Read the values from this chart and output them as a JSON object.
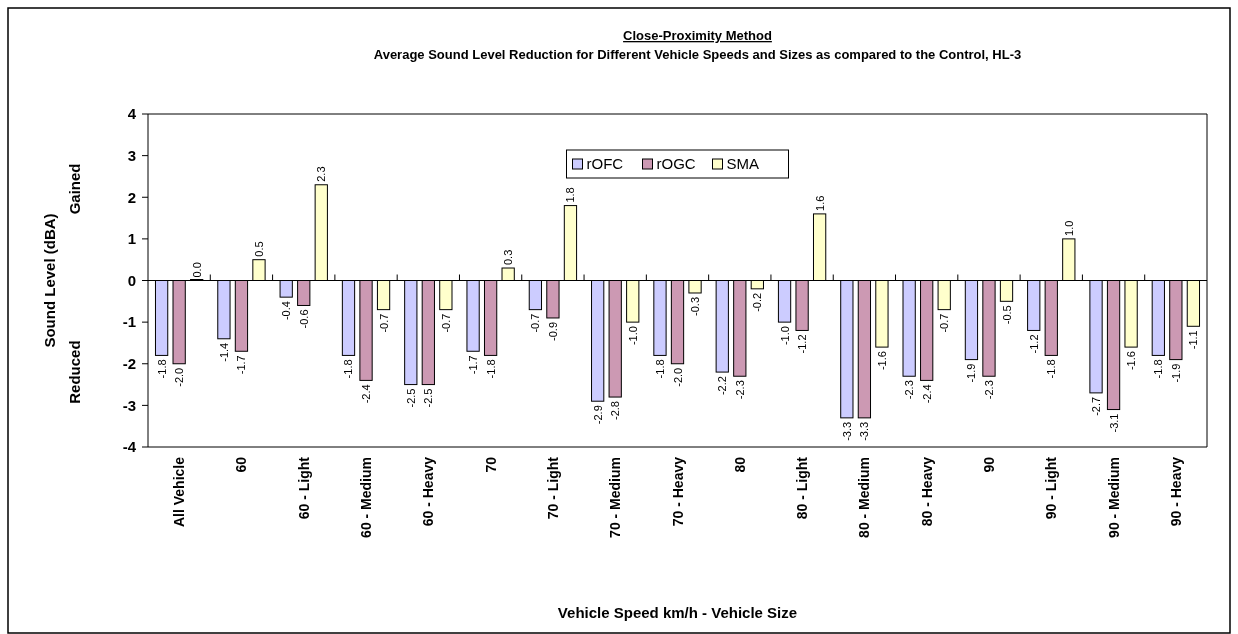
{
  "chart_data": {
    "type": "bar",
    "title": "Close-Proximity Method",
    "subtitle": "Average Sound Level Reduction for Different Vehicle Speeds and Sizes as compared to the Control, HL-3",
    "xlabel": "Vehicle Speed km/h - Vehicle Size",
    "ylabel": "Sound Level (dBA)",
    "annotations": [
      "Gained",
      "Reduced"
    ],
    "categories": [
      "All Vehicle",
      "60",
      "60 - Light",
      "60 - Medium",
      "60 - Heavy",
      "70",
      "70 - Light",
      "70 - Medium",
      "70 - Heavy",
      "80",
      "80 - Light",
      "80 - Medium",
      "80 - Heavy",
      "90",
      "90 - Light",
      "90 - Medium",
      "90 - Heavy"
    ],
    "series": [
      {
        "name": "rOFC",
        "color": "#ccccff",
        "values": [
          -1.8,
          -1.4,
          -0.4,
          -1.8,
          -2.5,
          -1.7,
          -0.7,
          -2.9,
          -1.8,
          -2.2,
          -1.0,
          -3.3,
          -2.3,
          -1.9,
          -1.2,
          -2.7,
          -1.8
        ],
        "value_labels": [
          "-1.8",
          "-1.4",
          "-0.4",
          "-1.8",
          "-2.5",
          "-1.7",
          "-0.7",
          "-2.9",
          "-1.8",
          "-2.2",
          "-1.0",
          "-3.3",
          "-2.3",
          "-1.9",
          "-1.2",
          "-2.7",
          "-1.8"
        ]
      },
      {
        "name": "rOGC",
        "color": "#cc99b3",
        "values": [
          -2.0,
          -1.7,
          -0.6,
          -2.4,
          -2.5,
          -1.8,
          -0.9,
          -2.8,
          -2.0,
          -2.3,
          -1.2,
          -3.3,
          -2.4,
          -2.3,
          -1.8,
          -3.1,
          -1.9
        ],
        "value_labels": [
          "-2.0",
          "-1.7",
          "-0.6",
          "-2.4",
          "-2.5",
          "-1.8",
          "-0.9",
          "-2.8",
          "-2.0",
          "-2.3",
          "-1.2",
          "-3.3",
          "-2.4",
          "-2.3",
          "-1.8",
          "-3.1",
          "-1.9"
        ]
      },
      {
        "name": "SMA",
        "color": "#ffffcc",
        "values": [
          0.0,
          0.5,
          2.3,
          -0.7,
          -0.7,
          0.3,
          1.8,
          -1.0,
          -0.3,
          -0.2,
          1.6,
          -1.6,
          -0.7,
          -0.5,
          1.0,
          -1.6,
          -1.1
        ],
        "value_labels": [
          "0.0",
          "0.5",
          "2.3",
          "-0.7",
          "-0.7",
          "0.3",
          "1.8",
          "-1.0",
          "-0.3",
          "-0.2",
          "1.6",
          "-1.6",
          "-0.7",
          "-0.5",
          "1.0",
          "-1.6",
          "-1.1"
        ]
      }
    ],
    "ylim": [
      -4,
      4
    ],
    "yticks": [
      -4,
      -3,
      -2,
      -1,
      0,
      1,
      2,
      3,
      4
    ],
    "legend": "top"
  }
}
